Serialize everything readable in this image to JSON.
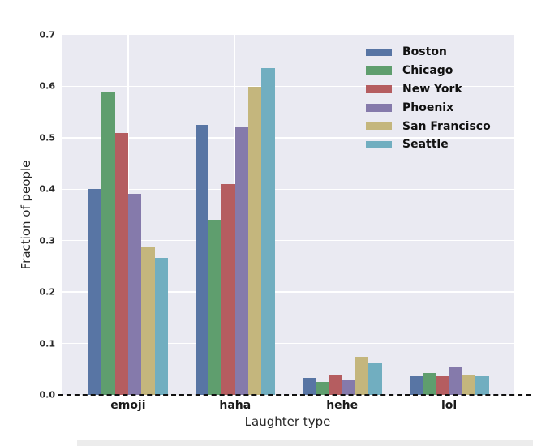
{
  "figure": {
    "background": "#ffffff",
    "plot_background": "#eaeaf2",
    "grid_color": "#ffffff",
    "text_color": "#262626",
    "zero_line_color": "#111111"
  },
  "chart_data": {
    "type": "bar",
    "title": "",
    "xlabel": "Laughter type",
    "ylabel": "Fraction of people",
    "categories": [
      "emoji",
      "haha",
      "hehe",
      "lol"
    ],
    "series": [
      {
        "name": "Boston",
        "color": "#5875a4",
        "values": [
          0.401,
          0.525,
          0.033,
          0.037
        ]
      },
      {
        "name": "Chicago",
        "color": "#5f9e6e",
        "values": [
          0.589,
          0.34,
          0.026,
          0.042
        ]
      },
      {
        "name": "New York",
        "color": "#b55d60",
        "values": [
          0.51,
          0.41,
          0.038,
          0.036
        ]
      },
      {
        "name": "Phoenix",
        "color": "#857aab",
        "values": [
          0.391,
          0.521,
          0.029,
          0.054
        ]
      },
      {
        "name": "San Francisco",
        "color": "#c4b67d",
        "values": [
          0.287,
          0.599,
          0.074,
          0.038
        ]
      },
      {
        "name": "Seattle",
        "color": "#71aec0",
        "values": [
          0.266,
          0.635,
          0.061,
          0.037
        ]
      }
    ],
    "ylim": [
      0.0,
      0.7
    ],
    "yticks": [
      "0.0",
      "0.1",
      "0.2",
      "0.3",
      "0.4",
      "0.5",
      "0.6",
      "0.7"
    ],
    "grid": true,
    "legend_position": "upper right",
    "zero_line_dashed": true
  }
}
